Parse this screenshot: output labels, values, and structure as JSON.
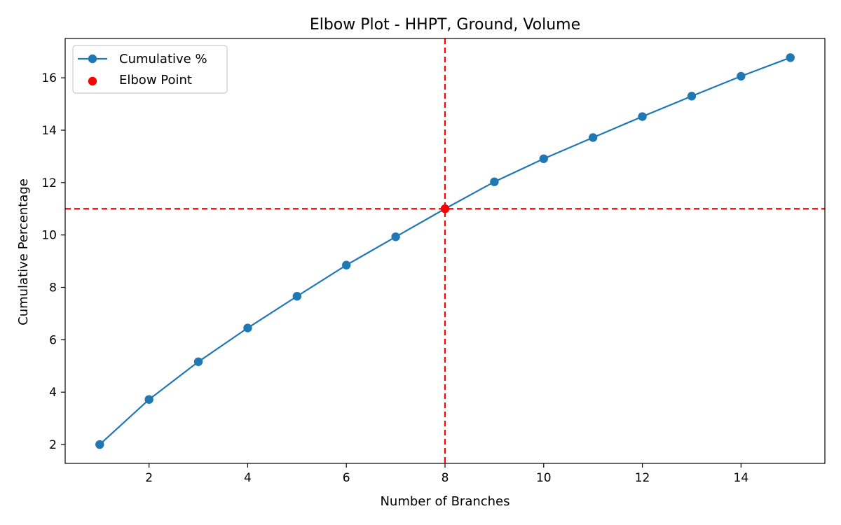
{
  "chart_data": {
    "type": "line",
    "title": "Elbow Plot - HHPT, Ground, Volume",
    "xlabel": "Number of Branches",
    "ylabel": "Cumulative Percentage",
    "xlim": [
      0.3,
      15.7
    ],
    "ylim": [
      1.28,
      17.5
    ],
    "x_ticks": [
      2,
      4,
      6,
      8,
      10,
      12,
      14
    ],
    "y_ticks": [
      2,
      4,
      6,
      8,
      10,
      12,
      14,
      16
    ],
    "grid": false,
    "legend_position": "top-left",
    "series": [
      {
        "name": "Cumulative %",
        "color": "#1f77b4",
        "marker": "circle",
        "x": [
          1,
          2,
          3,
          4,
          5,
          6,
          7,
          8,
          9,
          10,
          11,
          12,
          13,
          14,
          15
        ],
        "y": [
          2.0,
          3.72,
          5.16,
          6.45,
          7.66,
          8.85,
          9.93,
          11.0,
          12.03,
          12.91,
          13.72,
          14.52,
          15.3,
          16.06,
          16.77
        ]
      }
    ],
    "elbow_point": {
      "name": "Elbow Point",
      "x": 8,
      "y": 11.0,
      "color": "#ff0000",
      "line_style": "dashed"
    }
  }
}
